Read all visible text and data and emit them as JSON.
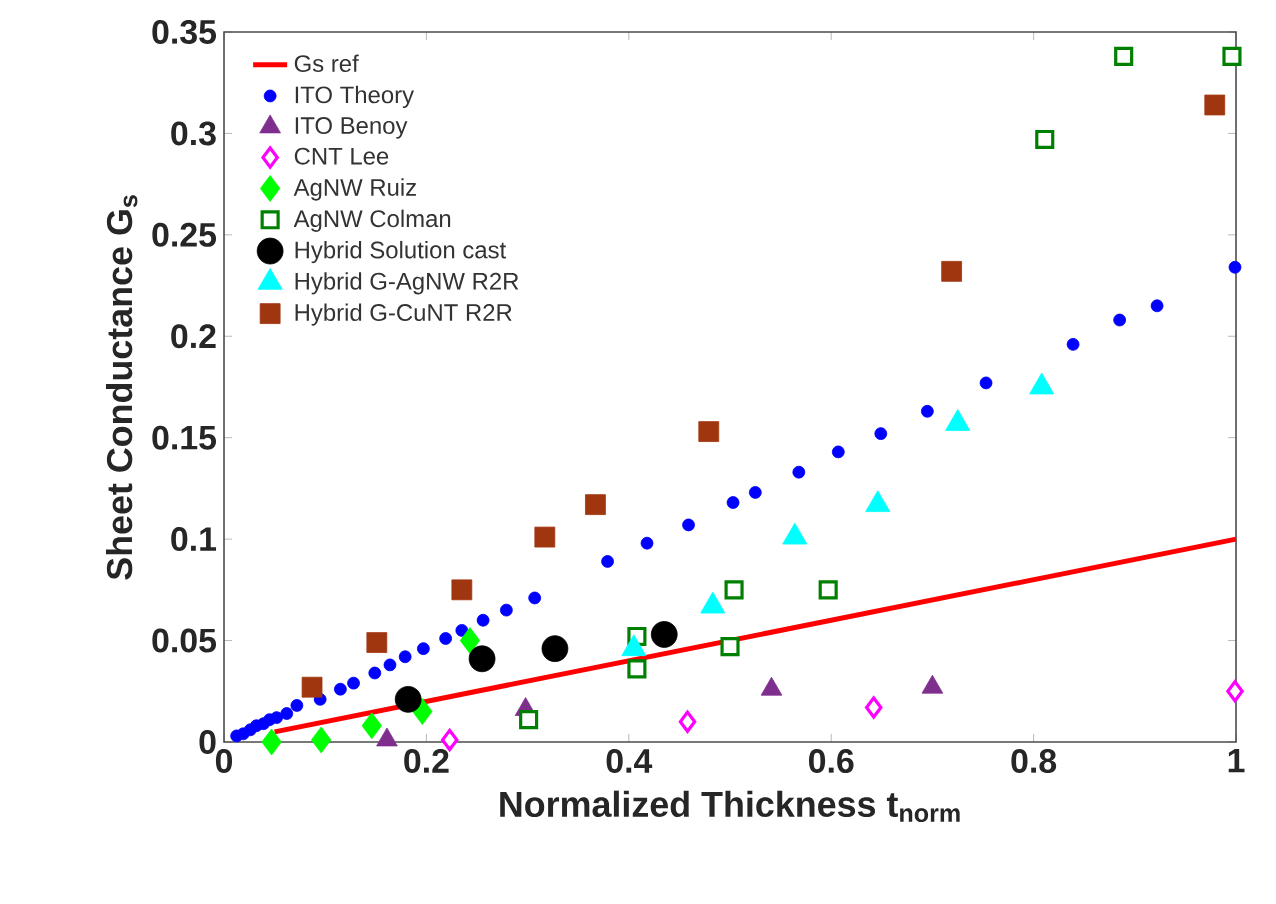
{
  "chart_data": {
    "type": "scatter",
    "xlabel": "Normalized Thickness t$_{norm}$",
    "ylabel": "Sheet Conductance G$_{s}$",
    "xlim": [
      0,
      1
    ],
    "ylim": [
      0,
      0.35
    ],
    "xticks": [
      0,
      0.2,
      0.4,
      0.6,
      0.8,
      1
    ],
    "yticks": [
      0,
      0.05,
      0.1,
      0.15,
      0.2,
      0.25,
      0.3,
      0.35
    ],
    "legend": "top left",
    "series": [
      {
        "name": "Gs ref",
        "type": "line",
        "color": "#ff0000",
        "x": [
          0.05,
          1
        ],
        "values": [
          0.005,
          0.1
        ]
      },
      {
        "name": "ITO Theory",
        "marker": "circle",
        "color": "#0000ff",
        "x": [
          0.0125,
          0.019,
          0.026,
          0.032,
          0.039,
          0.045,
          0.052,
          0.062,
          0.072,
          0.095,
          0.115,
          0.128,
          0.149,
          0.164,
          0.179,
          0.197,
          0.219,
          0.235,
          0.256,
          0.279,
          0.307,
          0.379,
          0.418,
          0.459,
          0.503,
          0.525,
          0.568,
          0.607,
          0.649,
          0.695,
          0.753,
          0.839,
          0.885,
          0.922,
          0.999
        ],
        "values": [
          0.003,
          0.004,
          0.006,
          0.008,
          0.009,
          0.011,
          0.012,
          0.014,
          0.018,
          0.021,
          0.026,
          0.029,
          0.034,
          0.038,
          0.042,
          0.046,
          0.051,
          0.055,
          0.06,
          0.065,
          0.071,
          0.089,
          0.098,
          0.107,
          0.118,
          0.123,
          0.133,
          0.143,
          0.152,
          0.163,
          0.177,
          0.196,
          0.208,
          0.215,
          0.234
        ]
      },
      {
        "name": "ITO Benoy",
        "marker": "triangle",
        "color": "#7e2f8e",
        "x": [
          0.161,
          0.298,
          0.541,
          0.7
        ],
        "values": [
          0.001,
          0.016,
          0.026,
          0.027
        ]
      },
      {
        "name": "CNT Lee",
        "marker": "diamond",
        "color": "#ff00ff",
        "x": [
          0.223,
          0.458,
          0.642,
          0.999
        ],
        "values": [
          0.001,
          0.01,
          0.017,
          0.025
        ]
      },
      {
        "name": "AgNW Ruiz",
        "marker": "diamond",
        "color": "#00ff00",
        "x": [
          0.047,
          0.096,
          0.146,
          0.196,
          0.243
        ],
        "values": [
          0.0,
          0.001,
          0.008,
          0.015,
          0.05
        ]
      },
      {
        "name": "AgNW Colman",
        "marker": "square",
        "color": "#008000",
        "x": [
          0.301,
          0.408,
          0.408,
          0.5,
          0.504,
          0.597,
          0.811,
          0.889,
          0.996
        ],
        "values": [
          0.011,
          0.052,
          0.036,
          0.047,
          0.075,
          0.075,
          0.297,
          0.338,
          0.338
        ]
      },
      {
        "name": "Hybrid Solution cast",
        "marker": "circle",
        "color": "#000000",
        "x": [
          0.182,
          0.255,
          0.327,
          0.435
        ],
        "values": [
          0.021,
          0.041,
          0.046,
          0.053
        ]
      },
      {
        "name": "Hybrid G-AgNW R2R",
        "marker": "triangle",
        "color": "#00ffff",
        "x": [
          0.405,
          0.483,
          0.564,
          0.646,
          0.725,
          0.808
        ],
        "values": [
          0.046,
          0.067,
          0.101,
          0.117,
          0.157,
          0.175
        ]
      },
      {
        "name": "Hybrid G-CuNT R2R",
        "marker": "square",
        "color": "#a0360f",
        "x": [
          0.087,
          0.151,
          0.235,
          0.317,
          0.367,
          0.479,
          0.719,
          0.979
        ],
        "values": [
          0.027,
          0.049,
          0.075,
          0.101,
          0.117,
          0.153,
          0.232,
          0.314
        ]
      }
    ]
  }
}
